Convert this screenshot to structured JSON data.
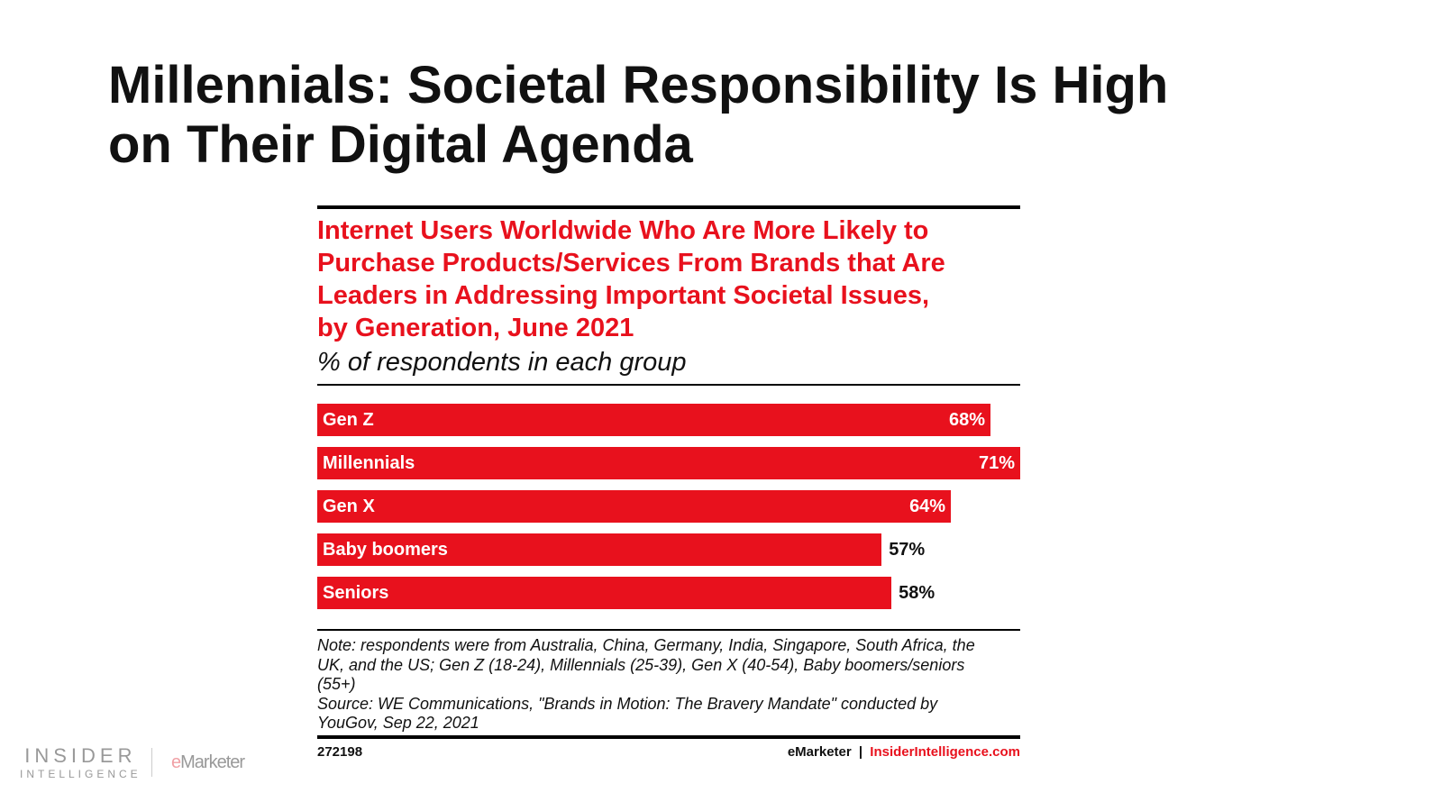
{
  "slide_title_line1": "Millennials: Societal Responsibility Is High",
  "slide_title_line2": "on Their Digital Agenda",
  "colors": {
    "bar": "#e8111d",
    "title_red": "#e8111d"
  },
  "chart_data": {
    "type": "bar",
    "orientation": "horizontal",
    "title": "Internet Users Worldwide Who Are More Likely to Purchase Products/Services From Brands that Are Leaders in Addressing Important Societal Issues, by Generation, June 2021",
    "title_lines": [
      "Internet Users Worldwide Who Are More Likely to",
      "Purchase Products/Services From Brands that Are",
      "Leaders in Addressing Important Societal Issues,",
      "by Generation, June 2021"
    ],
    "subtitle": "% of respondents in each group",
    "categories": [
      "Gen Z",
      "Millennials",
      "Gen X",
      "Baby boomers",
      "Seniors"
    ],
    "values": [
      68,
      71,
      64,
      57,
      58
    ],
    "value_labels": [
      "68%",
      "71%",
      "64%",
      "57%",
      "58%"
    ],
    "xlim": [
      0,
      71
    ],
    "grid": false
  },
  "note_lines": [
    "Note: respondents were from Australia, China, Germany, India, Singapore, South Africa, the",
    "UK, and the US; Gen Z (18-24), Millennials (25-39), Gen X (40-54), Baby boomers/seniors",
    "(55+)",
    "Source: WE Communications, \"Brands in Motion: The Bravery Mandate\" conducted by",
    "YouGov, Sep 22, 2021"
  ],
  "chart_id": "272198",
  "credit_emarketer": "eMarketer",
  "credit_sep": "|",
  "credit_site": "InsiderIntelligence.com",
  "logo": {
    "insider": "INSIDER",
    "intelligence": "INTELLIGENCE",
    "e": "e",
    "marketer": "Marketer"
  }
}
